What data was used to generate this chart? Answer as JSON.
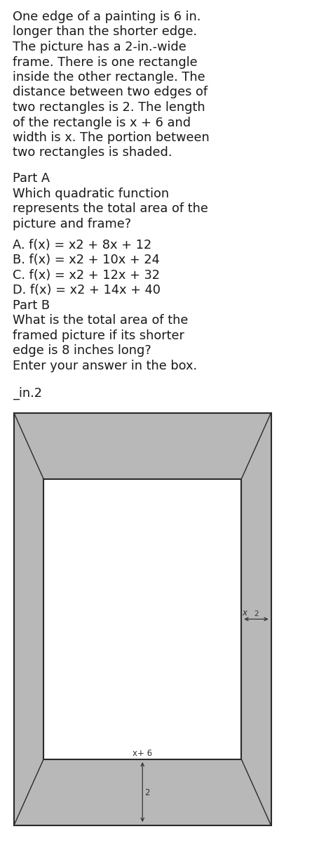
{
  "background_color": "#ffffff",
  "text_color": "#1a1a1a",
  "font_size_body": 12.8,
  "font_size_small": 8.5,
  "paragraph1_lines": [
    "One edge of a painting is 6 in.",
    "longer than the shorter edge.",
    "The picture has a 2-in.-wide",
    "frame. There is one rectangle",
    "inside the other rectangle. The",
    "distance between two edges of",
    "two rectangles is 2. The length",
    "of the rectangle is x + 6 and",
    "width is x. The portion between",
    "two rectangles is shaded."
  ],
  "part_a_label": "Part A",
  "part_a_lines": [
    "Which quadratic function",
    "represents the total area of the",
    "picture and frame?"
  ],
  "choices": [
    "A. f(x) = x2 + 8x + 12",
    "B. f(x) = x2 + 10x + 24",
    "C. f(x) = x2 + 12x + 32",
    "D. f(x) = x2 + 14x + 40"
  ],
  "part_b_label": "Part B",
  "part_b_lines": [
    "What is the total area of the",
    "framed picture if its shorter",
    "edge is 8 inches long?",
    "Enter your answer in the box."
  ],
  "answer_line": "_in.2",
  "frame_color": "#b8b8b8",
  "border_color": "#2a2a2a",
  "label_x_plus_6": "x+ 6",
  "label_2_bottom": "2",
  "label_x": "x",
  "label_2_right": "2"
}
